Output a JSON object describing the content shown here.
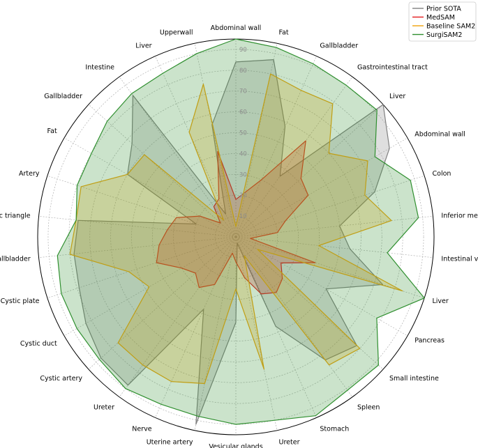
{
  "chart_data": {
    "type": "radar",
    "title": "",
    "categories": [
      "Abdominal wall",
      "Fat",
      "Gallbladder",
      "Gastrointestinal tract",
      "Liver",
      "Abdominal wall",
      "Colon",
      "Inferior mesenteric artery",
      "Intestinal veins",
      "Liver",
      "Pancreas",
      "Small intestine",
      "Spleen",
      "Stomach",
      "Ureter",
      "Vesicular glands",
      "Uterine artery",
      "Nerve",
      "Ureter",
      "Cystic artery",
      "Cystic duct",
      "Cystic plate",
      "Gallbladder",
      "Hepatocystic triangle",
      "Artery",
      "Fat",
      "Gallbladder",
      "Intestine",
      "Liver",
      "Upperwall"
    ],
    "rlim": [
      0,
      95
    ],
    "rticks": [
      "10",
      "20",
      "30",
      "40",
      "50",
      "60",
      "70",
      "80",
      "90"
    ],
    "grid": true,
    "legend_position": "top-right",
    "series": [
      {
        "name": "Prior SOTA",
        "color": "#808080",
        "values": [
          84,
          87,
          58,
          36,
          95,
          85,
          70,
          50,
          55,
          74,
          50,
          78,
          73,
          47,
          3,
          41,
          92,
          38,
          88,
          87,
          83,
          79,
          78,
          76,
          20,
          60,
          67,
          84,
          12,
          55
        ]
      },
      {
        "name": "MedSAM",
        "color": "#e31a1c",
        "values": [
          18,
          22,
          30,
          57,
          42,
          40,
          25,
          20,
          7,
          40,
          25,
          30,
          33,
          30,
          20,
          12,
          8,
          25,
          30,
          26,
          30,
          40,
          37,
          33,
          30,
          20,
          10,
          18,
          20,
          42
        ]
      },
      {
        "name": "Baseline SAM2",
        "color": "#f0a30a",
        "values": [
          5,
          80,
          77,
          79,
          60,
          73,
          65,
          75,
          40,
          84,
          12,
          80,
          76,
          10,
          65,
          25,
          72,
          76,
          76,
          76,
          48,
          54,
          80,
          77,
          78,
          60,
          59,
          10,
          55,
          75
        ]
      },
      {
        "name": "SurgiSAM2",
        "color": "#2f8f2f",
        "values": [
          95,
          93,
          91,
          90,
          91,
          77,
          88,
          88,
          73,
          95,
          78,
          92,
          91,
          94,
          90,
          90,
          88,
          88,
          90,
          88,
          88,
          88,
          86,
          77,
          80,
          80,
          83,
          85,
          86,
          90
        ]
      }
    ]
  }
}
